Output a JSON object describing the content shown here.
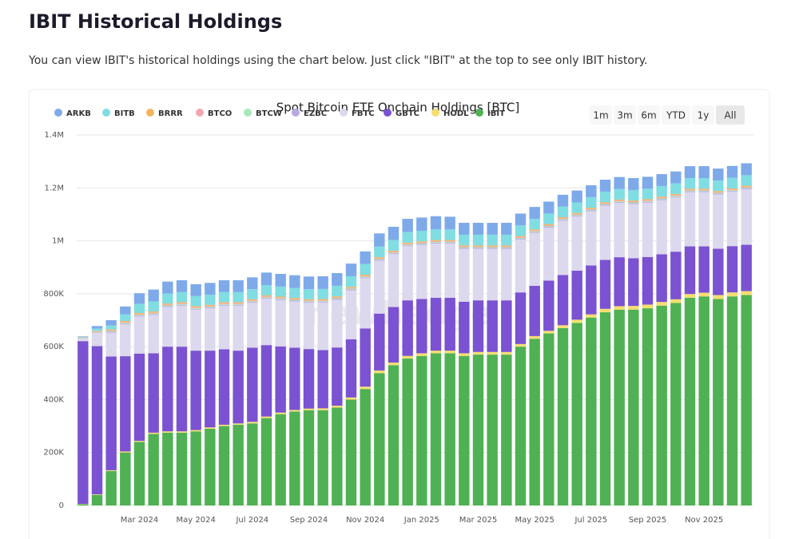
{
  "header": {
    "title": "IBIT Historical Holdings",
    "description": "You can view IBIT's historical holdings using the chart below. Just click \"IBIT\" at the top to see only IBIT history."
  },
  "range_buttons": [
    "1m",
    "3m",
    "6m",
    "YTD",
    "1y",
    "All"
  ],
  "watermark": "newhedge",
  "chart_data": {
    "type": "stacked_bar",
    "title": "Spot Bitcoin ETF Onchain Holdings [BTC]",
    "categories": [
      null,
      null,
      null,
      null,
      "Mar 2024",
      null,
      null,
      null,
      "May 2024",
      null,
      null,
      null,
      "Jul 2024",
      null,
      null,
      null,
      "Sep 2024",
      null,
      null,
      null,
      "Nov 2024",
      null,
      null,
      null,
      "Jan 2025",
      null,
      null,
      null,
      "Mar 2025",
      null,
      null,
      null,
      "May 2025",
      null,
      null,
      null,
      "Jul 2025",
      null,
      null,
      null,
      "Sep 2025",
      null,
      null,
      null,
      "Nov 2025",
      null,
      null,
      null
    ],
    "ylim": [
      0,
      1400000
    ],
    "yticks": [
      0,
      {
        "value": 200000,
        "label": "200K"
      },
      {
        "value": 400000,
        "label": "400K"
      },
      {
        "value": 600000,
        "label": "600K"
      },
      {
        "value": 800000,
        "label": "800K"
      },
      {
        "value": 1000000,
        "label": "1M"
      },
      {
        "value": 1200000,
        "label": "1.2M"
      },
      {
        "value": 1400000,
        "label": "1.4M"
      }
    ],
    "grid": true,
    "series": [
      {
        "name": "ARKB",
        "color": "#7eaaea",
        "values": [
          2000,
          10000,
          20000,
          30000,
          40000,
          45000,
          45000,
          45000,
          45000,
          45000,
          45000,
          45000,
          45000,
          48000,
          48000,
          48000,
          48000,
          48000,
          48000,
          48000,
          48000,
          50000,
          50000,
          50000,
          50000,
          50000,
          48000,
          45000,
          45000,
          45000,
          45000,
          45000,
          45000,
          45000,
          45000,
          45000,
          45000,
          45000,
          45000,
          45000,
          45000,
          45000,
          45000,
          45000,
          45000,
          45000,
          45000,
          45000
        ]
      },
      {
        "name": "BITB",
        "color": "#80dde2",
        "values": [
          2000,
          8000,
          15000,
          25000,
          35000,
          38000,
          38000,
          38000,
          38000,
          38000,
          38000,
          38000,
          38000,
          38000,
          38000,
          38000,
          38000,
          38000,
          40000,
          40000,
          40000,
          40000,
          40000,
          40000,
          40000,
          40000,
          40000,
          40000,
          40000,
          40000,
          40000,
          40000,
          40000,
          40000,
          40000,
          40000,
          40000,
          40000,
          40000,
          40000,
          40000,
          40000,
          40000,
          40000,
          40000,
          40000,
          40000,
          40000
        ]
      },
      {
        "name": "BRRR",
        "color": "#f5b560",
        "values": [
          1000,
          2000,
          3000,
          4000,
          4000,
          4000,
          4000,
          4000,
          4000,
          4000,
          4000,
          4000,
          4000,
          4000,
          4000,
          4000,
          4000,
          4000,
          4000,
          4000,
          4000,
          4000,
          4000,
          4000,
          4000,
          4000,
          4000,
          4000,
          4000,
          4000,
          4000,
          4000,
          4000,
          4000,
          4000,
          4000,
          4000,
          4000,
          4000,
          4000,
          4000,
          4000,
          4000,
          4000,
          4000,
          4000,
          4000,
          4000
        ]
      },
      {
        "name": "BTCO",
        "color": "#f4a6b0",
        "values": [
          1000,
          2000,
          3000,
          3000,
          3000,
          3000,
          3000,
          3000,
          3000,
          3000,
          3000,
          3000,
          3000,
          3000,
          3000,
          3000,
          3000,
          3000,
          3000,
          3000,
          3000,
          3000,
          3000,
          3000,
          3000,
          3000,
          3000,
          3000,
          3000,
          3000,
          3000,
          3000,
          3000,
          3000,
          3000,
          3000,
          3000,
          3000,
          3000,
          3000,
          3000,
          3000,
          3000,
          3000,
          3000,
          3000,
          3000,
          3000
        ]
      },
      {
        "name": "BTCW",
        "color": "#a8e8bb",
        "values": [
          1000,
          2000,
          3000,
          3000,
          3000,
          3000,
          3000,
          3000,
          3000,
          3000,
          3000,
          3000,
          3000,
          3000,
          3000,
          3000,
          3000,
          3000,
          3000,
          3000,
          3000,
          3000,
          3000,
          3000,
          3000,
          3000,
          3000,
          3000,
          3000,
          3000,
          3000,
          3000,
          3000,
          3000,
          3000,
          3000,
          3000,
          3000,
          3000,
          3000,
          3000,
          3000,
          3000,
          3000,
          3000,
          3000,
          3000,
          3000
        ]
      },
      {
        "name": "EZBC",
        "color": "#b9a9e2",
        "values": [
          1000,
          2000,
          3000,
          3000,
          3000,
          3000,
          3000,
          3000,
          3000,
          3000,
          3000,
          3000,
          3000,
          3000,
          3000,
          3000,
          3000,
          3000,
          3000,
          3000,
          3000,
          3000,
          3000,
          3000,
          3000,
          3000,
          3000,
          3000,
          3000,
          3000,
          3000,
          3000,
          3000,
          3000,
          3000,
          3000,
          3000,
          3000,
          3000,
          3000,
          3000,
          3000,
          3000,
          3000,
          3000,
          3000,
          3000,
          3000
        ]
      },
      {
        "name": "FBTC",
        "color": "#dcd8ee",
        "values": [
          10000,
          50000,
          90000,
          120000,
          140000,
          145000,
          150000,
          155000,
          155000,
          160000,
          165000,
          170000,
          170000,
          175000,
          175000,
          175000,
          175000,
          180000,
          180000,
          185000,
          190000,
          200000,
          200000,
          205000,
          205000,
          205000,
          205000,
          200000,
          195000,
          195000,
          195000,
          200000,
          200000,
          200000,
          205000,
          205000,
          205000,
          205000,
          205000,
          205000,
          205000,
          205000,
          205000,
          205000,
          205000,
          205000,
          205000,
          210000
        ]
      },
      {
        "name": "GBTC",
        "color": "#7b52d1",
        "values": [
          615000,
          560000,
          430000,
          360000,
          330000,
          300000,
          320000,
          320000,
          300000,
          290000,
          285000,
          275000,
          280000,
          270000,
          250000,
          235000,
          225000,
          220000,
          220000,
          220000,
          220000,
          215000,
          210000,
          210000,
          205000,
          200000,
          200000,
          195000,
          195000,
          195000,
          195000,
          195000,
          190000,
          190000,
          190000,
          185000,
          185000,
          185000,
          185000,
          180000,
          180000,
          180000,
          180000,
          180000,
          175000,
          175000,
          175000,
          175000
        ]
      },
      {
        "name": "HODL",
        "color": "#f5de70",
        "values": [
          1000,
          2000,
          3000,
          4000,
          4000,
          5000,
          5000,
          5000,
          5000,
          5000,
          5000,
          5000,
          6000,
          6000,
          6000,
          6000,
          6000,
          7000,
          7000,
          8000,
          9000,
          10000,
          10000,
          10000,
          10000,
          10000,
          10000,
          10000,
          10000,
          10000,
          10000,
          10000,
          10000,
          10000,
          11000,
          12000,
          12000,
          13000,
          13000,
          14000,
          14000,
          14000,
          14000,
          14000,
          14000,
          15000,
          15000,
          15000
        ]
      },
      {
        "name": "IBIT",
        "color": "#4fb153",
        "values": [
          5000,
          40000,
          130000,
          200000,
          240000,
          270000,
          275000,
          275000,
          280000,
          290000,
          300000,
          305000,
          310000,
          330000,
          345000,
          355000,
          360000,
          360000,
          370000,
          400000,
          440000,
          500000,
          530000,
          555000,
          565000,
          575000,
          575000,
          565000,
          570000,
          570000,
          570000,
          600000,
          630000,
          650000,
          670000,
          690000,
          710000,
          730000,
          740000,
          740000,
          745000,
          755000,
          765000,
          785000,
          790000,
          780000,
          790000,
          795000
        ]
      }
    ]
  }
}
